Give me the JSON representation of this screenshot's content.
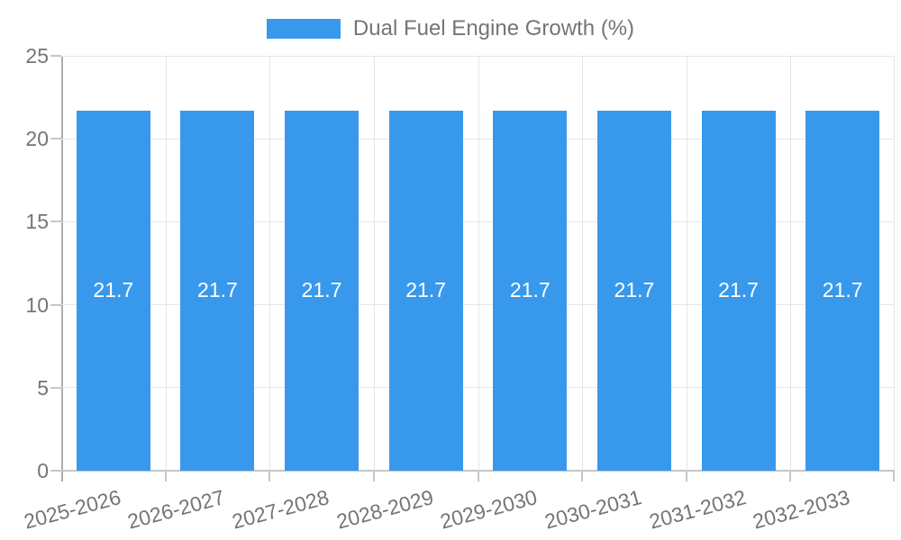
{
  "legend": {
    "label": "Dual Fuel Engine Growth (%)"
  },
  "chart_data": {
    "type": "bar",
    "title": "",
    "categories": [
      "2025-2026",
      "2026-2027",
      "2027-2028",
      "2028-2029",
      "2029-2030",
      "2030-2031",
      "2031-2032",
      "2032-2033"
    ],
    "series": [
      {
        "name": "Dual Fuel Engine Growth (%)",
        "values": [
          21.7,
          21.7,
          21.7,
          21.7,
          21.7,
          21.7,
          21.7,
          21.7
        ]
      }
    ],
    "bar_value_labels": [
      "21.7",
      "21.7",
      "21.7",
      "21.7",
      "21.7",
      "21.7",
      "21.7",
      "21.7"
    ],
    "xlabel": "",
    "ylabel": "",
    "ylim": [
      0,
      25
    ],
    "yticks": [
      0,
      5,
      10,
      15,
      20,
      25
    ],
    "grid": true,
    "legend_position": "top",
    "x_label_rotation_deg": -15,
    "colors": {
      "bar": "#3899ec",
      "bar_label": "#ffffff",
      "axis_text": "#757575",
      "grid_line": "#e6e6e6",
      "y_axis_line": "#adadad",
      "x_axis_line": "#c6c6c6"
    }
  }
}
